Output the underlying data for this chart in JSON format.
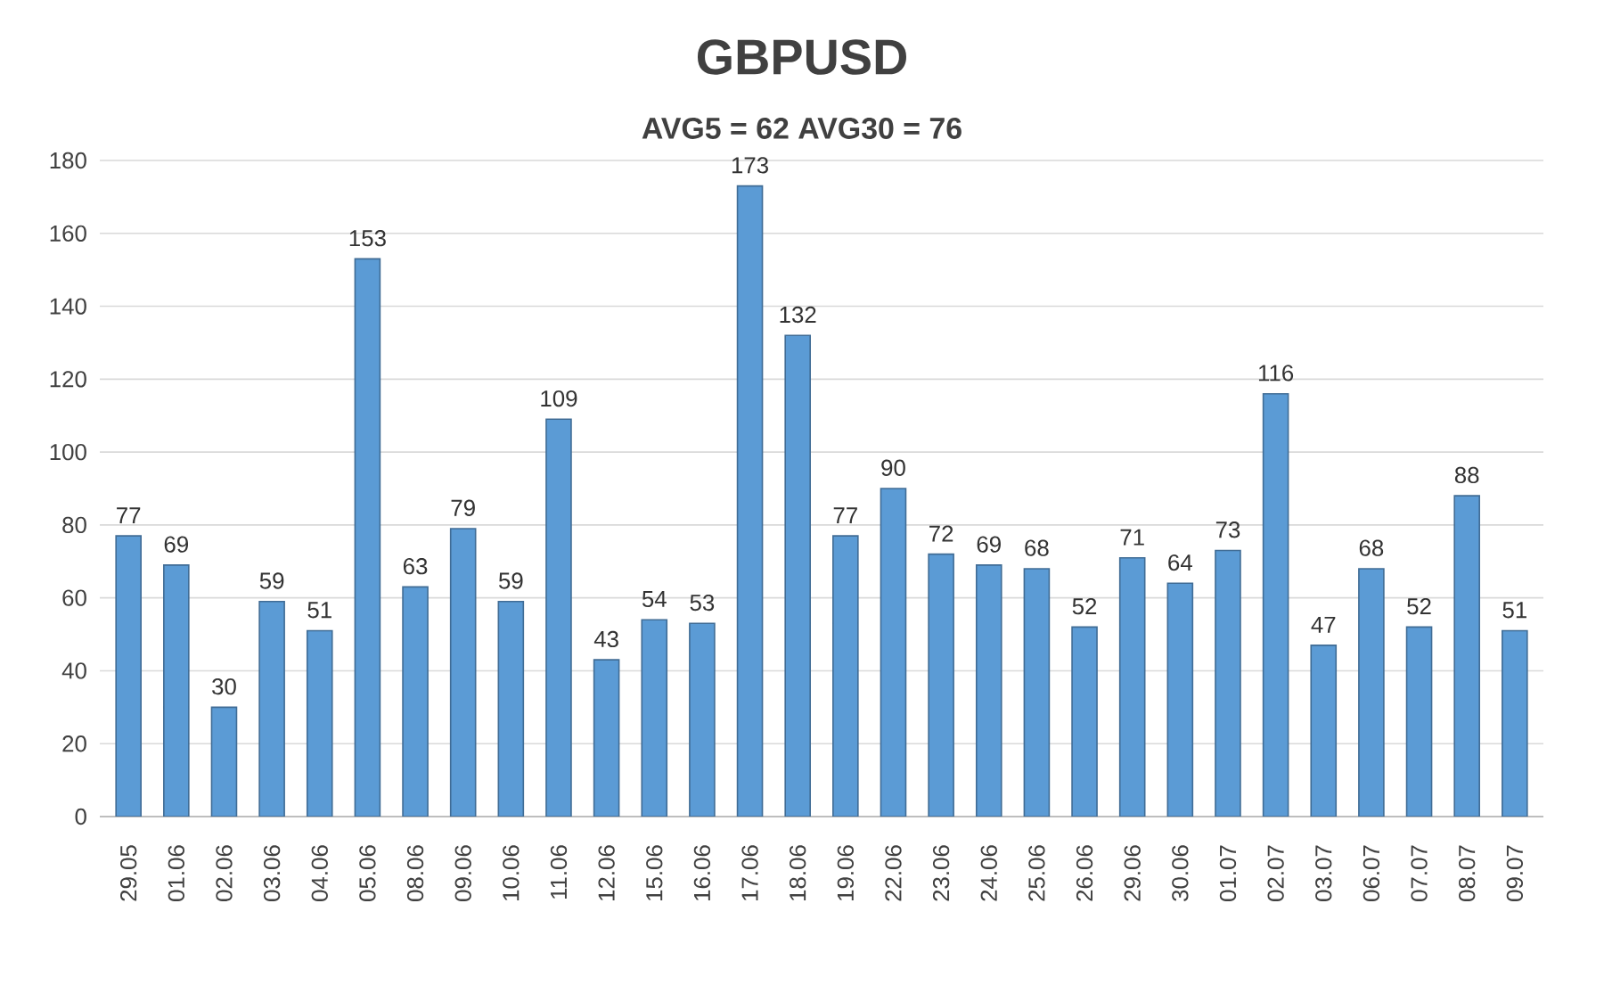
{
  "chart_data": {
    "type": "bar",
    "title": "GBPUSD",
    "subtitle": "AVG5 = 62 AVG30 = 76",
    "categories": [
      "29.05",
      "01.06",
      "02.06",
      "03.06",
      "04.06",
      "05.06",
      "08.06",
      "09.06",
      "10.06",
      "11.06",
      "12.06",
      "15.06",
      "16.06",
      "17.06",
      "18.06",
      "19.06",
      "22.06",
      "23.06",
      "24.06",
      "25.06",
      "26.06",
      "29.06",
      "30.06",
      "01.07",
      "02.07",
      "03.07",
      "06.07",
      "07.07",
      "08.07",
      "09.07"
    ],
    "values": [
      77,
      69,
      30,
      59,
      51,
      153,
      63,
      79,
      59,
      109,
      43,
      54,
      53,
      173,
      132,
      77,
      90,
      72,
      69,
      68,
      52,
      71,
      64,
      73,
      116,
      47,
      68,
      52,
      88,
      51
    ],
    "color": "#5b9bd5",
    "ylim": [
      0,
      180
    ],
    "yticks": [
      0,
      20,
      40,
      60,
      80,
      100,
      120,
      140,
      160,
      180
    ],
    "grid": "y",
    "data_labels": true
  }
}
